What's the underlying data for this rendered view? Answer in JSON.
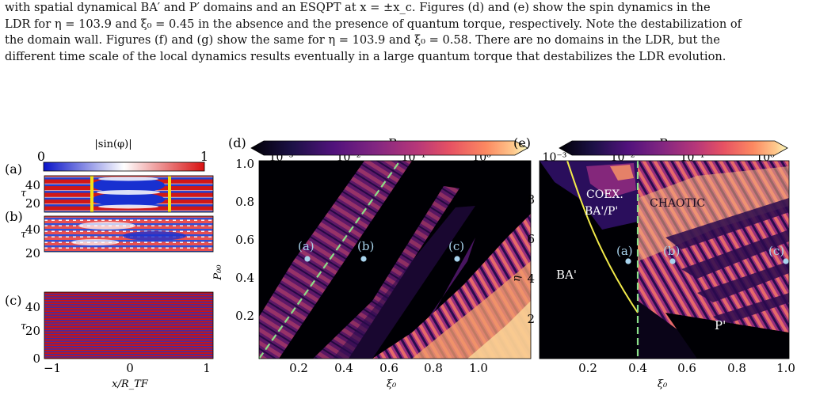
{
  "caption_lines": [
    "with spatial dynamical BA′ and P′ domains and an ESQPT at x = ±x_c. Figures (d) and (e) show the spin dynamics in the",
    "LDR for η = 103.9 and ξ₀ = 0.45 in the absence and the presence of quantum torque, respectively. Note the destabilization of",
    "the domain wall. Figures (f) and (g) show the same for η = 103.9 and ξ₀ = 0.58. There are no domains in the LDR, but the",
    "different time scale of the local dynamics results eventually in a large quantum torque that destabilizes the LDR evolution."
  ],
  "panel_left": {
    "colorbar_title": "|sin(φ)|",
    "colorbar_min": "0",
    "colorbar_max": "1",
    "labels": [
      "(a)",
      "(b)",
      "(c)"
    ],
    "y_axis_label": "τ",
    "y_ticks": [
      "0",
      "20",
      "40"
    ],
    "x_ticks": [
      "−1",
      "0",
      "1"
    ],
    "x_axis_label": "x/R_TF"
  },
  "panel_d": {
    "label": "(d)",
    "colorbar_title": "R",
    "colorbar_ticks": [
      "10⁻³",
      "10⁻²",
      "10⁻¹",
      "10⁰"
    ],
    "y_axis_label": "P₀₀",
    "y_ticks": [
      "0.2",
      "0.4",
      "0.6",
      "0.8",
      "1.0"
    ],
    "x_ticks": [
      "0.2",
      "0.4",
      "0.6",
      "0.8",
      "1.0"
    ],
    "x_axis_label": "ξ₀",
    "points": [
      {
        "label": "(a)",
        "x": 0.37,
        "y": 0.5
      },
      {
        "label": "(b)",
        "x": 0.54,
        "y": 0.5
      },
      {
        "label": "(c)",
        "x": 1.01,
        "y": 0.5
      }
    ]
  },
  "panel_e": {
    "label": "(e)",
    "colorbar_title": "R",
    "colorbar_ticks": [
      "10⁻³",
      "10⁻²",
      "10⁻¹",
      "10⁰"
    ],
    "y_axis_label": "η",
    "y_ticks": [
      "2",
      "4",
      "6",
      "8"
    ],
    "x_ticks": [
      "0.2",
      "0.4",
      "0.6",
      "0.8",
      "1.0"
    ],
    "x_axis_label": "ξ₀",
    "region_labels": {
      "coex_1": "COEX.",
      "coex_2": "BA'/P'",
      "chaotic": "CHAOTIC",
      "ba": "BA'",
      "p": "P'"
    },
    "points": [
      {
        "label": "(a)",
        "x": 0.37,
        "y": 4.85
      },
      {
        "label": "(b)",
        "x": 0.54,
        "y": 4.85
      },
      {
        "label": "(c)",
        "x": 0.99,
        "y": 4.85
      }
    ]
  }
}
